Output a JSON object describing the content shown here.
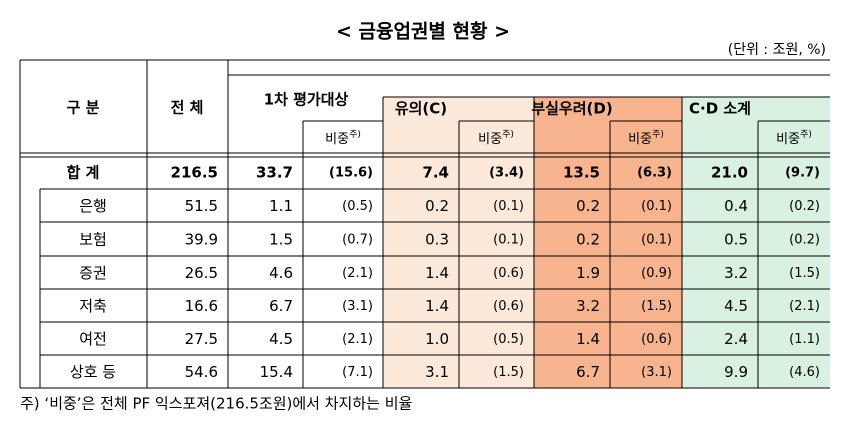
{
  "title": "< 금융업권별 현황 >",
  "unit": "(단위 : 조원, %)",
  "table": {
    "header": {
      "category": "구 분",
      "total": "전 체",
      "first": "1차 평가대상",
      "caution": "유의(C)",
      "risk": "부실우려(D)",
      "subtotal": "C·D 소계",
      "share": "비중",
      "note": "주)"
    },
    "rows": [
      [
        "합 계",
        "216.5",
        "33.7",
        "(15.6)",
        "7.4",
        "(3.4)",
        "13.5",
        "(6.3)",
        "21.0",
        "(9.7)"
      ],
      [
        "은행",
        "51.5",
        "1.1",
        "(0.5)",
        "0.2",
        "(0.1)",
        "0.2",
        "(0.1)",
        "0.4",
        "(0.2)"
      ],
      [
        "보험",
        "39.9",
        "1.5",
        "(0.7)",
        "0.3",
        "(0.1)",
        "0.2",
        "(0.1)",
        "0.5",
        "(0.2)"
      ],
      [
        "증권",
        "26.5",
        "4.6",
        "(2.1)",
        "1.4",
        "(0.6)",
        "1.9",
        "(0.9)",
        "3.2",
        "(1.5)"
      ],
      [
        "저축",
        "16.6",
        "6.7",
        "(3.1)",
        "1.4",
        "(0.6)",
        "3.2",
        "(1.5)",
        "4.5",
        "(2.1)"
      ],
      [
        "여전",
        "27.5",
        "4.5",
        "(2.1)",
        "1.0",
        "(0.5)",
        "1.4",
        "(0.6)",
        "2.4",
        "(1.1)"
      ],
      [
        "상호 등",
        "54.6",
        "15.4",
        "(7.1)",
        "3.1",
        "(1.5)",
        "6.7",
        "(3.1)",
        "9.9",
        "(4.6)"
      ]
    ]
  },
  "footnote": "주) ‘비중’은 전체 PF 익스포져(216.5조원)에서 차지하는 비율"
}
